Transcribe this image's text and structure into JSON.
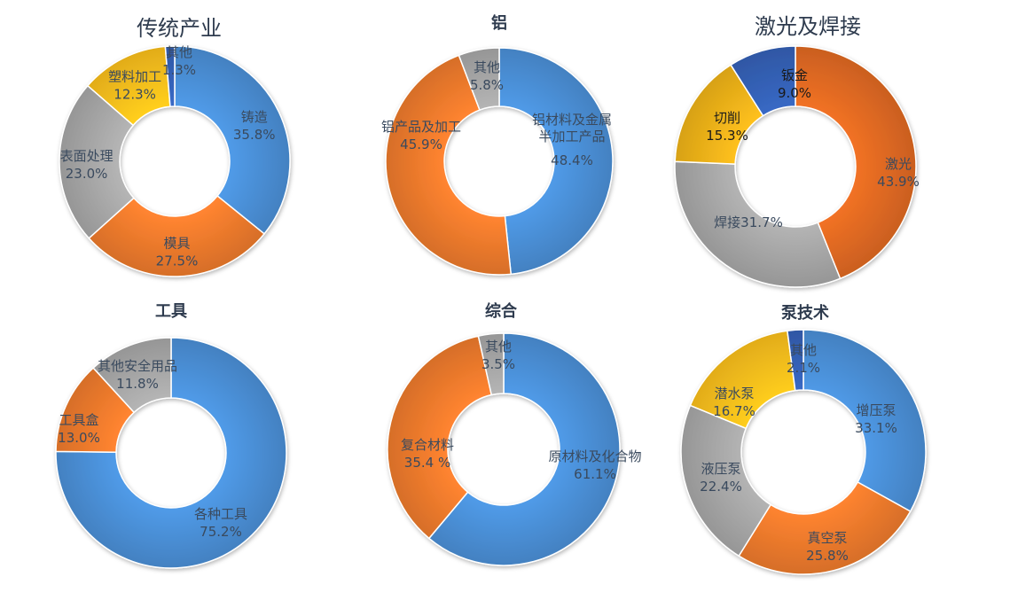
{
  "chart_data": [
    {
      "type": "pie",
      "title": "传统产业",
      "categories": [
        "铸造",
        "模具",
        "表面处理",
        "塑料加工",
        "其他"
      ],
      "values": [
        35.8,
        27.5,
        23.0,
        12.3,
        1.3
      ],
      "labels": [
        "35.8%",
        "27.5%",
        "23.0%",
        "12.3%",
        "1.3%"
      ],
      "colors": [
        "#4a8fd6",
        "#ee7a2c",
        "#a7a7a7",
        "#fbbf1c",
        "#3461b6"
      ]
    },
    {
      "type": "pie",
      "title": "铝",
      "categories": [
        "铝材料及金属半加工产品",
        "铝产品及加工",
        "其他"
      ],
      "values": [
        48.4,
        45.9,
        5.8
      ],
      "labels": [
        "48.4%",
        "45.9%",
        "5.8%"
      ],
      "colors": [
        "#4a8fd6",
        "#ee7a2c",
        "#a7a7a7"
      ]
    },
    {
      "type": "pie",
      "title": "激光及焊接",
      "categories": [
        "激光",
        "焊接",
        "切削",
        "钣金"
      ],
      "values": [
        43.9,
        31.7,
        15.3,
        9.0
      ],
      "labels": [
        "43.9%",
        "31.7%",
        "15.3%",
        "9.0%"
      ],
      "colors": [
        "#e06a22",
        "#a7a7a7",
        "#efb31a",
        "#3461b6"
      ]
    },
    {
      "type": "pie",
      "title": "工具",
      "categories": [
        "各种工具",
        "工具盒",
        "其他安全用品"
      ],
      "values": [
        75.2,
        13.0,
        11.8
      ],
      "labels": [
        "75.2%",
        "13.0%",
        "11.8%"
      ],
      "colors": [
        "#4a8fd6",
        "#ee7a2c",
        "#a7a7a7"
      ]
    },
    {
      "type": "pie",
      "title": "综合",
      "categories": [
        "原材料及化合物",
        "复合材料",
        "其他"
      ],
      "values": [
        61.1,
        35.4,
        3.5
      ],
      "labels": [
        "61.1%",
        "35.4 %",
        "3.5%"
      ],
      "colors": [
        "#4a8fd6",
        "#ee7a2c",
        "#a7a7a7"
      ]
    },
    {
      "type": "pie",
      "title": "泵技术",
      "categories": [
        "增压泵",
        "真空泵",
        "液压泵",
        "潜水泵",
        "其他"
      ],
      "values": [
        33.1,
        25.8,
        22.4,
        16.7,
        2.1
      ],
      "labels": [
        "33.1%",
        "25.8%",
        "22.4%",
        "16.7%",
        "2.1%"
      ],
      "colors": [
        "#4a8fd6",
        "#ee7a2c",
        "#a7a7a7",
        "#fbbf1c",
        "#3461b6"
      ]
    }
  ]
}
